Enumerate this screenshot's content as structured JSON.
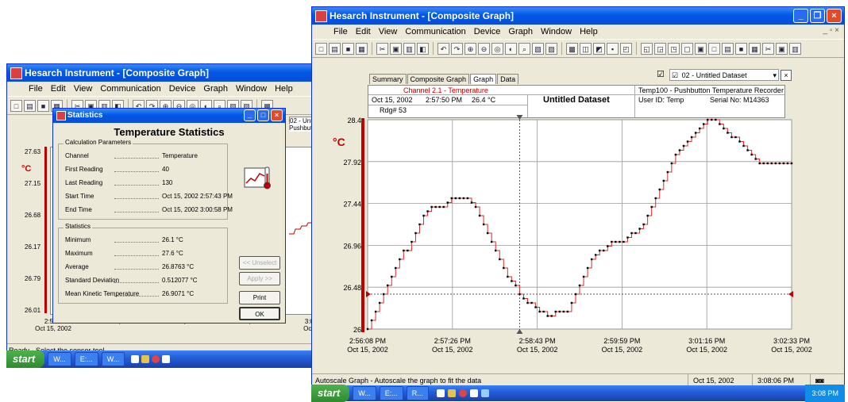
{
  "left_window": {
    "title": "Hesarch Instrument - [Composite Graph]",
    "menu": [
      "File",
      "Edit",
      "View",
      "Communication",
      "Device",
      "Graph",
      "Window",
      "Help"
    ],
    "y_unit": "°C",
    "y_ticks": [
      "27.63",
      "27.15",
      "26.68",
      "26.17",
      "26.79",
      "26.01"
    ],
    "x_ticks": [
      "2:55:0\nOct 15, 2002",
      "Oct 15, 2002",
      "Oct 15, 2002",
      "Oct 15, 2002",
      "3:02:3\nOct 15,"
    ],
    "status_text": "Ready - Select the sensor tool",
    "channel_header": "02 - Untit...",
    "channel_sub": "Pushbutton T..."
  },
  "dialog": {
    "title": "Statistics",
    "heading": "Temperature Statistics",
    "calc_group": "Calculation Parameters",
    "calc_rows": [
      {
        "label": "Channel",
        "value": "Temperature"
      },
      {
        "label": "First Reading",
        "value": "40"
      },
      {
        "label": "Last Reading",
        "value": "130"
      },
      {
        "label": "Start Time",
        "value": "Oct 15, 2002 2:57:43 PM"
      },
      {
        "label": "End Time",
        "value": "Oct 15, 2002 3:00:58 PM"
      }
    ],
    "stats_group": "Statistics",
    "stats_rows": [
      {
        "label": "Minimum",
        "value": "26.1 °C"
      },
      {
        "label": "Maximum",
        "value": "27.6 °C"
      },
      {
        "label": "Average",
        "value": "26.8763 °C"
      },
      {
        "label": "Standard Deviation",
        "value": "0.512077 °C"
      },
      {
        "label": "Mean Kinetic Temperature",
        "value": "26.9071 °C"
      }
    ],
    "buttons": {
      "unselect": "<< Unselect",
      "apply": "Apply >>",
      "print": "Print",
      "ok": "OK"
    }
  },
  "left_taskbar": {
    "start": "start",
    "items": [
      "W...",
      "E:...",
      "W..."
    ],
    "tray": ""
  },
  "right_window": {
    "title": "Hesarch Instrument - [Composite Graph]",
    "menu": [
      "File",
      "Edit",
      "View",
      "Communication",
      "Device",
      "Graph",
      "Window",
      "Help"
    ],
    "tabs": [
      "Summary",
      "Composite Graph",
      "Graph",
      "Data"
    ],
    "active_tab": "Graph",
    "dataset_checkbox": "☑",
    "dataset_select": "02 - Untitled Dataset",
    "header": {
      "channel": "Channel 2.1 - Temperature",
      "date": "Oct 15, 2002",
      "time": "2:57:50 PM",
      "reading_value": "26.4 °C",
      "reading_no": "Rdg# 53",
      "dataset_title": "Untitled Dataset",
      "device": "Temp100 - Pushbutton Temperature Recorder",
      "user_id": "User ID: Temp",
      "serial": "Serial No: M14363"
    },
    "y_unit": "°C",
    "status_text": "Autoscale Graph - Autoscale the graph to fit the data",
    "status_date": "Oct 15, 2002",
    "status_time": "3:08:06 PM"
  },
  "right_taskbar": {
    "start": "start",
    "items": [
      "W...",
      "E:...",
      "R..."
    ],
    "tray": "3:08 PM"
  },
  "chart_data": {
    "type": "line",
    "title": "",
    "xlabel": "",
    "ylabel": "°C",
    "x_ticks": [
      "2:56:08 PM\nOct 15, 2002",
      "2:57:26 PM\nOct 15, 2002",
      "2:58:43 PM\nOct 15, 2002",
      "2:59:59 PM\nOct 15, 2002",
      "3:01:16 PM\nOct 15, 2002",
      "3:02:33 PM\nOct 15, 2002"
    ],
    "y_ticks": [
      "26",
      "26.48",
      "26.96",
      "27.44",
      "27.92",
      "28.4"
    ],
    "ylim": [
      26,
      28.4
    ],
    "grid": true,
    "cursor_value": 26.4,
    "series": [
      {
        "values": [
          26.0,
          26.1,
          26.2,
          26.3,
          26.4,
          26.5,
          26.6,
          26.7,
          26.8,
          26.9,
          26.9,
          27.0,
          27.1,
          27.2,
          27.3,
          27.35,
          27.4,
          27.4,
          27.4,
          27.4,
          27.45,
          27.5,
          27.5,
          27.5,
          27.5,
          27.5,
          27.45,
          27.4,
          27.3,
          27.2,
          27.1,
          27.0,
          26.9,
          26.8,
          26.7,
          26.6,
          26.55,
          26.5,
          26.4,
          26.35,
          26.3,
          26.3,
          26.25,
          26.2,
          26.2,
          26.15,
          26.15,
          26.2,
          26.2,
          26.2,
          26.2,
          26.3,
          26.4,
          26.5,
          26.6,
          26.7,
          26.8,
          26.85,
          26.9,
          26.9,
          26.95,
          27.0,
          27.0,
          27.0,
          27.0,
          27.05,
          27.1,
          27.1,
          27.15,
          27.2,
          27.3,
          27.4,
          27.5,
          27.6,
          27.7,
          27.8,
          27.9,
          28.0,
          28.05,
          28.1,
          28.15,
          28.2,
          28.25,
          28.3,
          28.35,
          28.4,
          28.4,
          28.4,
          28.35,
          28.3,
          28.25,
          28.2,
          28.2,
          28.15,
          28.1,
          28.05,
          28.0,
          27.95,
          27.9,
          27.9,
          27.9,
          27.9,
          27.9,
          27.9,
          27.9,
          27.9,
          27.9
        ]
      }
    ]
  }
}
